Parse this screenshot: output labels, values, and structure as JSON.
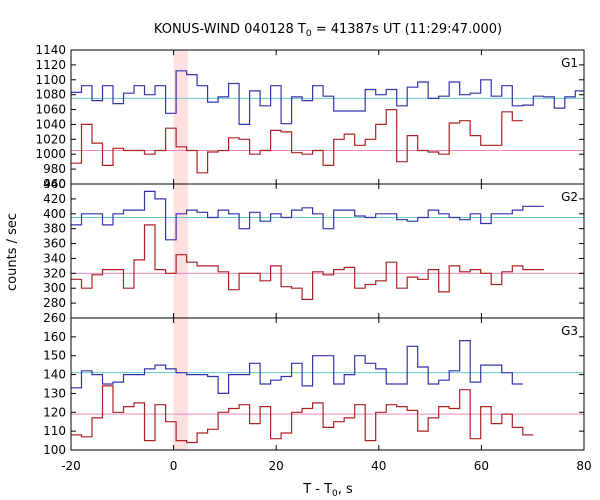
{
  "chart_data": {
    "type": "line",
    "title": "KONUS-WIND 040128 T",
    "title_sub": "0",
    "title_rest": " = 41387s UT (11:29:47.000)",
    "xlabel": "T - T",
    "xlabel_sub": "0",
    "xlabel_rest": ", s",
    "ylabel": "counts / sec",
    "xlim": [
      -20,
      80
    ],
    "xticks": [
      -20,
      0,
      20,
      40,
      60,
      80
    ],
    "step": 2.048,
    "x_start": -20,
    "highlight": [
      0,
      2.8
    ],
    "colors": {
      "hard": "#3333aa",
      "soft": "#aa2222",
      "hard_bg": "#66cccc",
      "soft_bg": "#ee88bb",
      "highlight": "#ffcccc"
    },
    "panels": [
      {
        "label": "G1",
        "ylim": [
          960,
          1140
        ],
        "yticks": [
          960,
          980,
          1000,
          1020,
          1040,
          1060,
          1080,
          1100,
          1120,
          1140
        ],
        "series": [
          {
            "role": "upper",
            "background": 1075,
            "values": [
              1083,
              1092,
              1072,
              1092,
              1068,
              1082,
              1092,
              1080,
              1092,
              1055,
              1112,
              1107,
              1092,
              1070,
              1077,
              1095,
              1040,
              1085,
              1065,
              1092,
              1041,
              1077,
              1072,
              1092,
              1078,
              1058,
              1058,
              1058,
              1087,
              1080,
              1087,
              1065,
              1090,
              1097,
              1075,
              1078,
              1097,
              1080,
              1082,
              1100,
              1078,
              1092,
              1065,
              1066,
              1078,
              1077,
              1062,
              1077,
              1085
            ]
          },
          {
            "role": "lower",
            "background": 1005,
            "values": [
              988,
              1040,
              1015,
              985,
              1008,
              1005,
              1005,
              1000,
              1005,
              1035,
              1010,
              1005,
              975,
              1003,
              1005,
              1022,
              1020,
              1000,
              1005,
              1032,
              1030,
              1002,
              1000,
              1005,
              985,
              1020,
              1027,
              1012,
              1020,
              1040,
              1060,
              990,
              1025,
              1005,
              1003,
              1000,
              1042,
              1045,
              1025,
              1012,
              1012,
              1057,
              1045
            ]
          }
        ]
      },
      {
        "label": "G2",
        "ylim": [
          260,
          440
        ],
        "yticks": [
          260,
          280,
          300,
          320,
          340,
          360,
          380,
          400,
          420,
          440
        ],
        "series": [
          {
            "role": "upper",
            "background": 395,
            "values": [
              385,
              400,
              400,
              385,
              400,
              405,
              405,
              430,
              420,
              365,
              400,
              405,
              402,
              395,
              405,
              400,
              380,
              402,
              390,
              400,
              395,
              405,
              408,
              400,
              380,
              405,
              405,
              397,
              395,
              400,
              400,
              392,
              390,
              395,
              405,
              400,
              395,
              392,
              400,
              387,
              400,
              400,
              405,
              410,
              410
            ]
          },
          {
            "role": "lower",
            "background": 320,
            "values": [
              312,
              300,
              318,
              325,
              325,
              300,
              338,
              385,
              325,
              320,
              345,
              335,
              330,
              330,
              322,
              298,
              320,
              320,
              310,
              330,
              302,
              300,
              285,
              322,
              318,
              325,
              328,
              300,
              305,
              310,
              335,
              300,
              315,
              312,
              325,
              295,
              330,
              322,
              325,
              320,
              305,
              322,
              330,
              325,
              325
            ]
          }
        ]
      },
      {
        "label": "G3",
        "ylim": [
          100,
          170
        ],
        "yticks": [
          100,
          110,
          120,
          130,
          140,
          150,
          160
        ],
        "series": [
          {
            "role": "upper",
            "background": 141,
            "values": [
              133,
              142,
              140,
              135,
              136,
              140,
              140,
              143,
              145,
              143,
              141,
              140,
              140,
              139,
              130,
              140,
              140,
              146,
              135,
              137,
              139,
              146,
              134,
              150,
              150,
              135,
              140,
              150,
              146,
              143,
              135,
              135,
              155,
              144,
              135,
              137,
              142,
              158,
              136,
              145,
              145,
              141,
              135
            ]
          },
          {
            "role": "lower",
            "background": 119,
            "values": [
              108,
              107,
              117,
              134,
              120,
              123,
              125,
              105,
              124,
              115,
              105,
              104,
              109,
              111,
              120,
              122,
              124,
              114,
              123,
              106,
              109,
              120,
              122,
              125,
              112,
              115,
              117,
              124,
              105,
              120,
              124,
              123,
              121,
              110,
              117,
              123,
              122,
              132,
              106,
              123,
              114,
              119,
              112,
              108
            ]
          }
        ]
      }
    ]
  }
}
